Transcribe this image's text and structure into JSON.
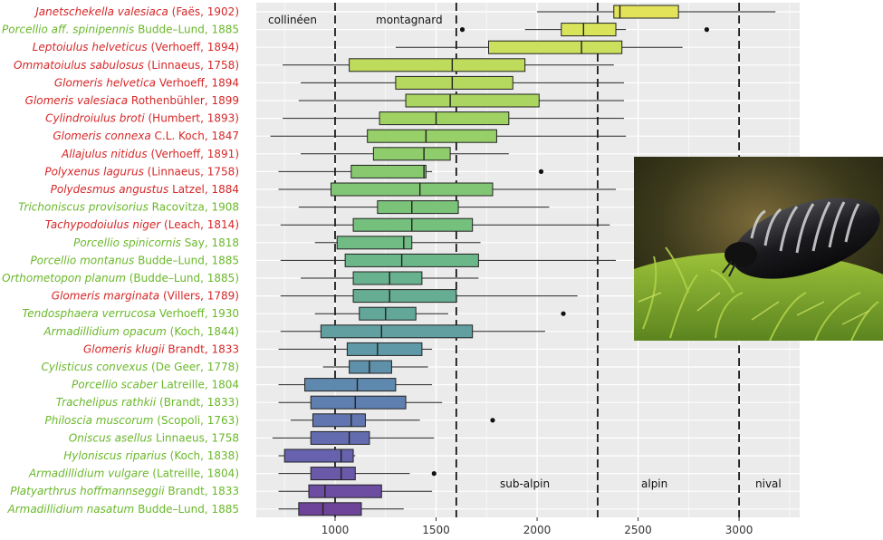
{
  "chart_data": {
    "type": "boxplot",
    "orientation": "horizontal",
    "x_ticks": [
      1000,
      1500,
      2000,
      2500,
      3000
    ],
    "xlim": [
      610,
      3300
    ],
    "grid": true,
    "palette": "viridis (yellow top to purple bottom)",
    "zones": [
      {
        "label": "collinéen",
        "upper": 1000
      },
      {
        "label": "montagnard",
        "upper": 1600
      },
      {
        "label": "sub-alpin",
        "upper": 2300
      },
      {
        "label": "alpin",
        "upper": 3000
      },
      {
        "label": "nival"
      }
    ],
    "zone_boundaries": [
      1000,
      1600,
      2300,
      3000
    ],
    "legend_colors": {
      "millipede": "#d62728",
      "woodlouse": "#6ab82a"
    },
    "species": [
      {
        "name": "Janetschekella valesiaca",
        "author": "(Faës, 1902)",
        "group": "millipede",
        "whisker_low": 2000,
        "q1": 2380,
        "median": 2410,
        "q3": 2700,
        "whisker_high": 3180,
        "outliers": [],
        "color": "#e3e35a"
      },
      {
        "name": "Porcellio aff. spinipennis",
        "author": "Budde–Lund, 1885",
        "group": "woodlouse",
        "whisker_low": 1940,
        "q1": 2120,
        "median": 2230,
        "q3": 2390,
        "whisker_high": 2440,
        "outliers": [
          1630,
          2840
        ],
        "color": "#dae45a"
      },
      {
        "name": "Leptoiulus helveticus",
        "author": "(Verhoeff, 1894)",
        "group": "millipede",
        "whisker_low": 1300,
        "q1": 1760,
        "median": 2220,
        "q3": 2420,
        "whisker_high": 2720,
        "outliers": [],
        "color": "#cbe05c"
      },
      {
        "name": "Ommatoiulus sabulosus",
        "author": "(Linnaeus, 1758)",
        "group": "millipede",
        "whisker_low": 740,
        "q1": 1070,
        "median": 1580,
        "q3": 1940,
        "whisker_high": 2380,
        "outliers": [],
        "color": "#bedb5c"
      },
      {
        "name": "Glomeris helvetica",
        "author": "Verhoeff, 1894",
        "group": "millipede",
        "whisker_low": 830,
        "q1": 1300,
        "median": 1580,
        "q3": 1880,
        "whisker_high": 2430,
        "outliers": [],
        "color": "#b5d85e"
      },
      {
        "name": "Glomeris valesiaca",
        "author": "Rothenbühler, 1899",
        "group": "millipede",
        "whisker_low": 820,
        "q1": 1350,
        "median": 1570,
        "q3": 2010,
        "whisker_high": 2430,
        "outliers": [],
        "color": "#aad560"
      },
      {
        "name": "Cylindroiulus broti",
        "author": "(Humbert, 1893)",
        "group": "millipede",
        "whisker_low": 740,
        "q1": 1220,
        "median": 1500,
        "q3": 1860,
        "whisker_high": 2430,
        "outliers": [],
        "color": "#a0d263"
      },
      {
        "name": "Glomeris connexa",
        "author": "C.L. Koch, 1847",
        "group": "millipede",
        "whisker_low": 680,
        "q1": 1160,
        "median": 1450,
        "q3": 1800,
        "whisker_high": 2440,
        "outliers": [],
        "color": "#97cf68"
      },
      {
        "name": "Allajulus nitidus",
        "author": "(Verhoeff, 1891)",
        "group": "millipede",
        "whisker_low": 830,
        "q1": 1190,
        "median": 1440,
        "q3": 1570,
        "whisker_high": 1860,
        "outliers": [],
        "color": "#8fcc6c"
      },
      {
        "name": "Polyxenus lagurus",
        "author": "(Linnaeus, 1758)",
        "group": "millipede",
        "whisker_low": 720,
        "q1": 1080,
        "median": 1440,
        "q3": 1450,
        "whisker_high": 1480,
        "outliers": [
          2020
        ],
        "color": "#88c970"
      },
      {
        "name": "Polydesmus angustus",
        "author": "Latzel, 1884",
        "group": "millipede",
        "whisker_low": 720,
        "q1": 980,
        "median": 1420,
        "q3": 1780,
        "whisker_high": 2390,
        "outliers": [],
        "color": "#81c674"
      },
      {
        "name": "Trichoniscus provisorius",
        "author": "Racovitza, 1908",
        "group": "woodlouse",
        "whisker_low": 820,
        "q1": 1210,
        "median": 1380,
        "q3": 1610,
        "whisker_high": 2060,
        "outliers": [],
        "color": "#7bc379"
      },
      {
        "name": "Tachypodoiulus niger",
        "author": "(Leach, 1814)",
        "group": "millipede",
        "whisker_low": 730,
        "q1": 1090,
        "median": 1380,
        "q3": 1680,
        "whisker_high": 2360,
        "outliers": [],
        "color": "#76c07e"
      },
      {
        "name": "Porcellio spinicornis",
        "author": "Say, 1818",
        "group": "woodlouse",
        "whisker_low": 900,
        "q1": 1010,
        "median": 1340,
        "q3": 1380,
        "whisker_high": 1720,
        "outliers": [],
        "color": "#71bc84"
      },
      {
        "name": "Porcellio montanus",
        "author": "Budde–Lund, 1885",
        "group": "woodlouse",
        "whisker_low": 730,
        "q1": 1050,
        "median": 1330,
        "q3": 1710,
        "whisker_high": 2390,
        "outliers": [],
        "color": "#6cb78a"
      },
      {
        "name": "Orthometopon planum",
        "author": "(Budde–Lund, 1885)",
        "group": "woodlouse",
        "whisker_low": 830,
        "q1": 1090,
        "median": 1270,
        "q3": 1430,
        "whisker_high": 1710,
        "outliers": [],
        "color": "#69b28f"
      },
      {
        "name": "Glomeris marginata",
        "author": "(Villers, 1789)",
        "group": "millipede",
        "whisker_low": 730,
        "q1": 1090,
        "median": 1270,
        "q3": 1600,
        "whisker_high": 2200,
        "outliers": [],
        "color": "#66ad94"
      },
      {
        "name": "Tendosphaera verrucosa",
        "author": "Verhoeff, 1930",
        "group": "woodlouse",
        "whisker_low": 900,
        "q1": 1120,
        "median": 1250,
        "q3": 1400,
        "whisker_high": 1560,
        "outliers": [
          2130
        ],
        "color": "#63a69a"
      },
      {
        "name": "Armadillidium opacum",
        "author": "(Koch, 1844)",
        "group": "woodlouse",
        "whisker_low": 730,
        "q1": 930,
        "median": 1230,
        "q3": 1680,
        "whisker_high": 2040,
        "outliers": [],
        "color": "#619fa0"
      },
      {
        "name": "Glomeris klugii",
        "author": "Brandt, 1833",
        "group": "millipede",
        "whisker_low": 720,
        "q1": 1060,
        "median": 1210,
        "q3": 1430,
        "whisker_high": 1480,
        "outliers": [],
        "color": "#5f98a6"
      },
      {
        "name": "Cylisticus convexus",
        "author": "(De Geer, 1778)",
        "group": "woodlouse",
        "whisker_low": 940,
        "q1": 1070,
        "median": 1170,
        "q3": 1280,
        "whisker_high": 1460,
        "outliers": [],
        "color": "#5e90aa"
      },
      {
        "name": "Porcellio scaber",
        "author": "Latreille, 1804",
        "group": "woodlouse",
        "whisker_low": 720,
        "q1": 850,
        "median": 1110,
        "q3": 1300,
        "whisker_high": 1480,
        "outliers": [],
        "color": "#5e88ae"
      },
      {
        "name": "Trachelipus rathkii",
        "author": "(Brandt, 1833)",
        "group": "woodlouse",
        "whisker_low": 720,
        "q1": 880,
        "median": 1100,
        "q3": 1350,
        "whisker_high": 1530,
        "outliers": [],
        "color": "#5f7fb0"
      },
      {
        "name": "Philoscia muscorum",
        "author": "(Scopoli, 1763)",
        "group": "woodlouse",
        "whisker_low": 780,
        "q1": 890,
        "median": 1080,
        "q3": 1150,
        "whisker_high": 1420,
        "outliers": [
          1780
        ],
        "color": "#6176b1"
      },
      {
        "name": "Oniscus asellus",
        "author": "Linnaeus, 1758",
        "group": "woodlouse",
        "whisker_low": 690,
        "q1": 880,
        "median": 1070,
        "q3": 1170,
        "whisker_high": 1490,
        "outliers": [],
        "color": "#646cb0"
      },
      {
        "name": "Hyloniscus riparius",
        "author": "(Koch, 1838)",
        "group": "woodlouse",
        "whisker_low": 720,
        "q1": 750,
        "median": 1030,
        "q3": 1090,
        "whisker_high": 1100,
        "outliers": [],
        "color": "#6762ad"
      },
      {
        "name": "Armadillidium vulgare",
        "author": "(Latreille, 1804)",
        "group": "woodlouse",
        "whisker_low": 720,
        "q1": 880,
        "median": 1030,
        "q3": 1100,
        "whisker_high": 1370,
        "outliers": [
          1490
        ],
        "color": "#6a58a8"
      },
      {
        "name": "Platyarthrus hoffmannseggii",
        "author": "Brandt, 1833",
        "group": "woodlouse",
        "whisker_low": 720,
        "q1": 870,
        "median": 950,
        "q3": 1230,
        "whisker_high": 1480,
        "outliers": [],
        "color": "#6c4da1"
      },
      {
        "name": "Armadillidium nasatum",
        "author": "Budde–Lund, 1885",
        "group": "woodlouse",
        "whisker_low": 720,
        "q1": 820,
        "median": 940,
        "q3": 1130,
        "whisker_high": 1340,
        "outliers": [],
        "color": "#6d4499"
      }
    ]
  },
  "photo": {
    "subject": "pill-millipede-on-moss"
  }
}
